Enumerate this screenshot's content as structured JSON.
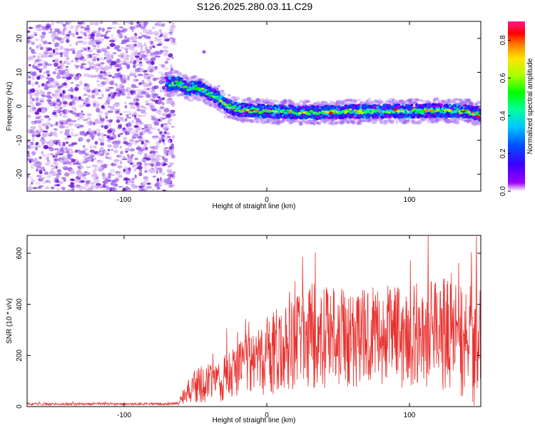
{
  "title": "S126.2025.280.03.11.C29",
  "colors": {
    "snr_line": "#e8322f",
    "axis": "#000000",
    "scatter_weak": "#d9b8f5",
    "scatter_strong": "#6a10d6"
  },
  "chart_data": [
    {
      "type": "heatmap",
      "xlabel": "Height of straight line (km)",
      "ylabel": "Frequency (Hz)",
      "xlim": [
        -168,
        150
      ],
      "ylim": [
        -25,
        25
      ],
      "xticks": [
        -100,
        0,
        100
      ],
      "xtick_labels": [
        "-100",
        "0",
        "100"
      ],
      "yticks": [
        -20,
        -10,
        0,
        10,
        20
      ],
      "ytick_labels": [
        "-20",
        "-10",
        "0",
        "10",
        "20"
      ],
      "noise_region_x": [
        -168,
        -67
      ],
      "ridge": {
        "x": [
          -70,
          -65,
          -60,
          -55,
          -50,
          -45,
          -40,
          -35,
          -30,
          -20,
          -10,
          0,
          20,
          40,
          60,
          80,
          100,
          120,
          140,
          150
        ],
        "freq": [
          6.5,
          6.8,
          6.5,
          5.0,
          5.5,
          5.0,
          3.5,
          3.0,
          0.5,
          -1.0,
          -1.2,
          -1.5,
          -1.8,
          -1.8,
          -1.5,
          -1.5,
          -1.5,
          -1.2,
          -1.5,
          -2.5
        ]
      },
      "peak_points": [
        {
          "x": 45,
          "freq": -2.0
        },
        {
          "x": 90,
          "freq": -1.0
        },
        {
          "x": 148,
          "freq": -3.0
        }
      ],
      "colorbar": {
        "label": "Normalized spectral amplitude",
        "range": [
          0,
          0.9
        ],
        "ticks": [
          0.0,
          0.2,
          0.4,
          0.6,
          0.8
        ],
        "tick_labels": [
          "0.0",
          "0.2",
          "0.4",
          "0.6",
          "0.8"
        ],
        "colormap": [
          "#ffffff",
          "#9b00ff",
          "#3a00ff",
          "#0050ff",
          "#00c8ff",
          "#00ff9c",
          "#00ff00",
          "#a8ff00",
          "#ffe600",
          "#ff8000",
          "#ff0000",
          "#ff1a8c"
        ]
      }
    },
    {
      "type": "line",
      "xlabel": "Height of straight line (km)",
      "ylabel": "SNR (10 * v/v)",
      "xlim": [
        -168,
        150
      ],
      "ylim": [
        0,
        670
      ],
      "xticks": [
        -100,
        0,
        100
      ],
      "xtick_labels": [
        "-100",
        "0",
        "100"
      ],
      "yticks": [
        0,
        200,
        400,
        600
      ],
      "ytick_labels": [
        "0",
        "200",
        "400",
        "600"
      ],
      "envelope": {
        "x": [
          -168,
          -70,
          -62,
          -55,
          -50,
          -45,
          -40,
          -30,
          -20,
          -10,
          0,
          10,
          20,
          30,
          40,
          60,
          80,
          100,
          120,
          140,
          150
        ],
        "mid": [
          10,
          10,
          12,
          60,
          85,
          90,
          95,
          110,
          150,
          180,
          190,
          230,
          260,
          280,
          270,
          260,
          280,
          270,
          300,
          270,
          250
        ],
        "amp": [
          5,
          5,
          8,
          45,
          70,
          75,
          80,
          90,
          110,
          130,
          160,
          180,
          190,
          210,
          200,
          190,
          200,
          200,
          230,
          250,
          260
        ]
      },
      "notable_peaks": [
        {
          "x": 113,
          "snr": 668
        },
        {
          "x": 147,
          "snr": 665
        },
        {
          "x": 25,
          "snr": 585
        }
      ]
    }
  ]
}
